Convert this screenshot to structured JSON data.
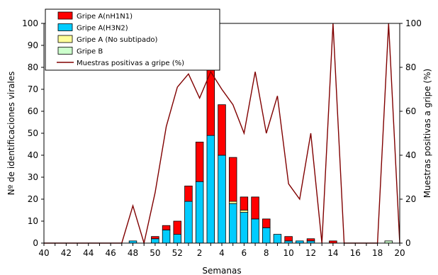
{
  "chart_data": {
    "type": "bar",
    "stacked": true,
    "xlabel": "Semanas",
    "ylabel": "Nº de identificaciones virales",
    "y2label": "Muestras positivas a gripe (%)",
    "ylim": [
      0,
      100
    ],
    "y2lim": [
      0,
      100
    ],
    "yticks": [
      0,
      10,
      20,
      30,
      40,
      50,
      60,
      70,
      80,
      90,
      100
    ],
    "y2ticks": [
      0,
      20,
      40,
      60,
      80,
      100
    ],
    "xtick_labels": [
      "40",
      "42",
      "44",
      "46",
      "48",
      "50",
      "52",
      "2",
      "4",
      "6",
      "8",
      "10",
      "12",
      "14",
      "16",
      "18",
      "20"
    ],
    "categories": [
      "40",
      "41",
      "42",
      "43",
      "44",
      "45",
      "46",
      "47",
      "48",
      "49",
      "50",
      "51",
      "52",
      "1",
      "2",
      "3",
      "4",
      "5",
      "6",
      "7",
      "8",
      "9",
      "10",
      "11",
      "12",
      "13",
      "14",
      "15",
      "16",
      "17",
      "18",
      "19",
      "20"
    ],
    "legend_placement": "top-left",
    "series": [
      {
        "name": "Gripe A(H3N2)",
        "kind": "bar",
        "color": "#00ccff",
        "values": [
          0,
          0,
          0,
          0,
          0,
          0,
          0,
          0,
          1,
          0,
          2,
          6,
          4,
          19,
          28,
          49,
          40,
          18,
          14,
          11,
          7,
          4,
          1,
          1,
          1,
          0,
          0,
          0,
          0,
          0,
          0,
          0,
          0
        ]
      },
      {
        "name": "Gripe A (No subtipado)",
        "kind": "bar",
        "color": "#ffff99",
        "values": [
          0,
          0,
          0,
          0,
          0,
          0,
          0,
          0,
          0,
          0,
          0,
          0,
          0,
          0,
          0,
          0,
          0,
          1,
          1,
          0,
          0,
          0,
          0,
          0,
          0,
          0,
          0,
          0,
          0,
          0,
          0,
          0,
          0
        ]
      },
      {
        "name": "Gripe B",
        "kind": "bar",
        "color": "#ccffcc",
        "values": [
          0,
          0,
          0,
          0,
          0,
          0,
          0,
          0,
          0,
          0,
          0,
          0,
          0,
          0,
          0,
          0,
          0,
          0,
          0,
          0,
          0,
          0,
          0,
          0,
          0,
          0,
          0,
          0,
          0,
          0,
          0,
          1,
          0
        ]
      },
      {
        "name": "Gripe A(nH1N1)",
        "kind": "bar",
        "color": "#ff0000",
        "values": [
          0,
          0,
          0,
          0,
          0,
          0,
          0,
          0,
          0,
          0,
          1,
          2,
          6,
          7,
          18,
          37,
          23,
          20,
          6,
          10,
          4,
          0,
          2,
          0,
          1,
          0,
          1,
          0,
          0,
          0,
          0,
          0,
          0
        ]
      },
      {
        "name": "Muestras positivas a gripe (%)",
        "kind": "line",
        "axis": "right",
        "color": "#800000",
        "values": [
          0,
          0,
          0,
          0,
          0,
          0,
          0,
          0,
          17,
          0,
          23,
          53,
          71,
          77,
          66,
          78,
          70,
          63,
          50,
          78,
          50,
          67,
          27,
          20,
          50,
          0,
          100,
          0,
          0,
          0,
          0,
          100,
          0
        ]
      }
    ],
    "legend_order": [
      "Gripe A(nH1N1)",
      "Gripe A(H3N2)",
      "Gripe A (No subtipado)",
      "Gripe B",
      "Muestras positivas a gripe (%)"
    ]
  }
}
